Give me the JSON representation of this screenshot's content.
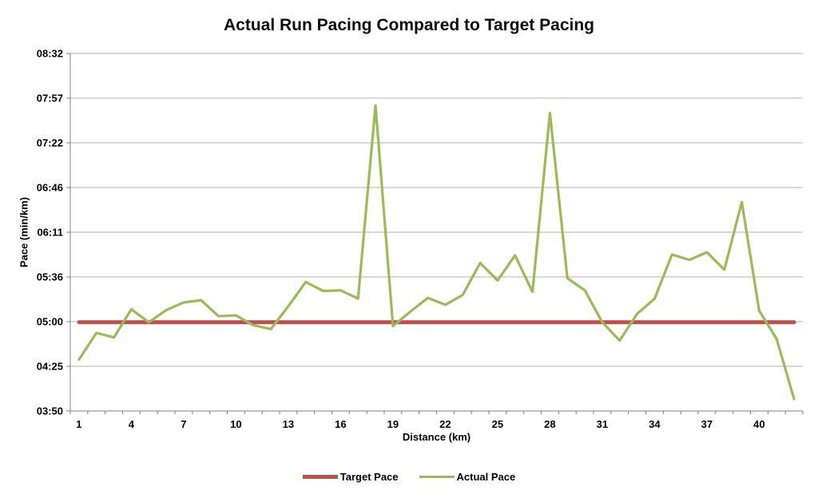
{
  "chart_data": {
    "type": "line",
    "title": "Actual Run Pacing Compared to Target Pacing",
    "xlabel": "Distance (km)",
    "ylabel": "Pace (min/km)",
    "grid": true,
    "units": "pace in decimal minutes per km",
    "x": [
      1,
      2,
      3,
      4,
      5,
      6,
      7,
      8,
      9,
      10,
      11,
      12,
      13,
      14,
      15,
      16,
      17,
      18,
      19,
      20,
      21,
      22,
      23,
      24,
      25,
      26,
      27,
      28,
      29,
      30,
      31,
      32,
      33,
      34,
      35,
      36,
      37,
      38,
      39,
      40,
      41,
      42
    ],
    "series": [
      {
        "name": "Target Pace",
        "color": "#c0504d",
        "values": [
          5.0,
          5.0,
          5.0,
          5.0,
          5.0,
          5.0,
          5.0,
          5.0,
          5.0,
          5.0,
          5.0,
          5.0,
          5.0,
          5.0,
          5.0,
          5.0,
          5.0,
          5.0,
          5.0,
          5.0,
          5.0,
          5.0,
          5.0,
          5.0,
          5.0,
          5.0,
          5.0,
          5.0,
          5.0,
          5.0,
          5.0,
          5.0,
          5.0,
          5.0,
          5.0,
          5.0,
          5.0,
          5.0,
          5.0,
          5.0,
          5.0,
          5.0
        ]
      },
      {
        "name": "Actual Pace",
        "color": "#9bbb59",
        "values": [
          4.51,
          4.86,
          4.8,
          5.17,
          5.0,
          5.16,
          5.26,
          5.29,
          5.08,
          5.09,
          4.96,
          4.91,
          5.21,
          5.53,
          5.41,
          5.42,
          5.31,
          7.85,
          4.95,
          5.14,
          5.32,
          5.23,
          5.36,
          5.78,
          5.55,
          5.88,
          5.4,
          7.75,
          5.58,
          5.42,
          5.0,
          4.76,
          5.11,
          5.31,
          5.89,
          5.82,
          5.92,
          5.69,
          6.58,
          5.15,
          4.78,
          3.99
        ]
      }
    ],
    "y_axis": {
      "min": 3.8333,
      "max": 8.5333,
      "tick_labels": [
        "03:50",
        "04:25",
        "05:00",
        "05:36",
        "06:11",
        "06:46",
        "07:22",
        "07:57",
        "08:32"
      ]
    },
    "x_axis": {
      "tick_label_values": [
        1,
        4,
        7,
        10,
        13,
        16,
        19,
        22,
        25,
        28,
        31,
        34,
        37,
        40
      ]
    },
    "legend": {
      "position": "bottom",
      "items": [
        "Target Pace",
        "Actual Pace"
      ]
    },
    "colors": {
      "gridline": "#b3b3b3",
      "axis": "#808080",
      "text": "#000000"
    }
  }
}
